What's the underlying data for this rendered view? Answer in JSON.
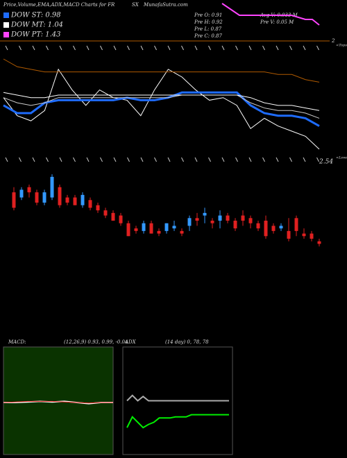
{
  "header": {
    "title": "Price,Volume,EMA,ADX,MACD Charts for FR",
    "ticker": "SX",
    "site": "MunafaSutra.com",
    "dow_st": "DOW ST: 0.98",
    "dow_mt": "DOW MT: 1.04",
    "dow_pt": "DOW PT: 1.43",
    "pre_o": "Pre  O: 0.91",
    "pre_h": "Pre  H: 0.92",
    "pre_l": "Pre  L: 0.87",
    "pre_c": "Pre  C: 0.87",
    "avg_v": "Avg  V: 0.033 M",
    "pre_v": "Pre  V: 0.05 M"
  },
  "chart_data": [
    {
      "type": "line",
      "annotations": [
        "2",
        "<Tops",
        "2.54",
        "<Lows"
      ],
      "ylim": [
        0.8,
        1.15
      ],
      "series": [
        {
          "name": "price",
          "color": "#ffffff",
          "values": [
            1.0,
            0.93,
            0.91,
            0.95,
            1.11,
            1.03,
            0.97,
            1.03,
            1.0,
            0.99,
            0.93,
            1.03,
            1.11,
            1.08,
            1.03,
            0.99,
            1.0,
            0.97,
            0.88,
            0.92,
            0.89,
            0.87,
            0.85,
            0.8
          ]
        },
        {
          "name": "ema-short",
          "color": "#1e6cff",
          "values": [
            0.97,
            0.94,
            0.94,
            0.98,
            0.99,
            0.99,
            0.99,
            0.99,
            0.99,
            1.0,
            0.99,
            0.99,
            1.0,
            1.02,
            1.02,
            1.02,
            1.02,
            1.02,
            0.97,
            0.94,
            0.93,
            0.93,
            0.92,
            0.89
          ]
        },
        {
          "name": "ema-mid",
          "color": "#cccccc",
          "values": [
            1.0,
            0.98,
            0.97,
            0.98,
            1.0,
            1.0,
            1.0,
            1.0,
            1.0,
            1.0,
            1.0,
            1.0,
            1.0,
            1.01,
            1.01,
            1.01,
            1.01,
            1.01,
            0.98,
            0.96,
            0.95,
            0.95,
            0.94,
            0.92
          ]
        },
        {
          "name": "ema-long",
          "color": "#ffffff",
          "values": [
            1.02,
            1.01,
            1.0,
            1.0,
            1.01,
            1.01,
            1.01,
            1.01,
            1.01,
            1.01,
            1.01,
            1.01,
            1.01,
            1.01,
            1.01,
            1.01,
            1.01,
            1.01,
            1.0,
            0.98,
            0.97,
            0.97,
            0.96,
            0.95
          ]
        },
        {
          "name": "ema-top",
          "color": "#b05a00",
          "values": [
            1.15,
            1.12,
            1.11,
            1.1,
            1.1,
            1.1,
            1.1,
            1.1,
            1.1,
            1.1,
            1.1,
            1.1,
            1.1,
            1.1,
            1.1,
            1.1,
            1.1,
            1.1,
            1.1,
            1.1,
            1.09,
            1.09,
            1.07,
            1.06
          ]
        }
      ]
    },
    {
      "type": "candlestick",
      "ylim": [
        0.8,
        1.15
      ],
      "open": [
        1.05,
        1.03,
        1.07,
        1.05,
        1.01,
        1.03,
        1.07,
        1.03,
        1.03,
        1.0,
        1.02,
        1.0,
        0.98,
        0.97,
        0.96,
        0.93,
        0.91,
        0.9,
        0.93,
        0.9,
        0.9,
        0.91,
        0.9,
        0.92,
        0.95,
        0.96,
        0.94,
        0.94,
        0.96,
        0.94,
        0.96,
        0.95,
        0.93,
        0.94,
        0.92,
        0.91,
        0.9,
        0.95,
        0.89,
        0.89,
        0.86
      ],
      "high": [
        1.07,
        1.07,
        1.08,
        1.06,
        1.06,
        1.12,
        1.08,
        1.04,
        1.04,
        1.05,
        1.03,
        1.01,
        0.99,
        0.98,
        0.97,
        0.94,
        0.92,
        0.94,
        0.94,
        0.91,
        0.93,
        0.94,
        0.91,
        0.96,
        0.97,
        0.99,
        0.95,
        0.98,
        0.97,
        0.95,
        0.98,
        0.96,
        0.94,
        0.96,
        0.93,
        0.93,
        0.95,
        0.96,
        0.91,
        0.9,
        0.87
      ],
      "low": [
        0.98,
        1.02,
        1.03,
        1.0,
        1.0,
        1.02,
        0.99,
        1.0,
        1.0,
        0.99,
        0.98,
        0.97,
        0.95,
        0.94,
        0.92,
        0.88,
        0.89,
        0.89,
        0.89,
        0.88,
        0.89,
        0.9,
        0.88,
        0.9,
        0.92,
        0.93,
        0.91,
        0.91,
        0.93,
        0.9,
        0.92,
        0.91,
        0.9,
        0.87,
        0.89,
        0.9,
        0.86,
        0.88,
        0.87,
        0.86,
        0.84
      ],
      "close": [
        0.99,
        1.06,
        1.05,
        1.01,
        1.05,
        1.11,
        1.0,
        1.01,
        1.0,
        1.04,
        0.99,
        0.98,
        0.96,
        0.94,
        0.93,
        0.88,
        0.9,
        0.93,
        0.89,
        0.89,
        0.93,
        0.92,
        0.89,
        0.95,
        0.94,
        0.97,
        0.93,
        0.96,
        0.94,
        0.91,
        0.94,
        0.93,
        0.91,
        0.88,
        0.9,
        0.92,
        0.87,
        0.9,
        0.88,
        0.87,
        0.85
      ],
      "up_color": "#3399ff",
      "down_color": "#e02020"
    },
    {
      "type": "line",
      "title": "MACD:",
      "subtitle": "(12,26,9) 0.93, 0.99, -0.04",
      "ylim": [
        -1,
        1
      ],
      "background": "#0a3300",
      "series": [
        {
          "name": "macd",
          "color": "#ffffff",
          "values": [
            0.0,
            0.0,
            0.01,
            0.02,
            0.01,
            0.02,
            0.0,
            -0.02,
            0.0,
            0.0
          ]
        },
        {
          "name": "signal",
          "color": "#e02020",
          "values": [
            0.0,
            0.01,
            0.02,
            0.02,
            0.02,
            0.01,
            0.0,
            -0.01,
            0.0,
            0.0
          ]
        }
      ]
    },
    {
      "type": "line",
      "title": "ADX",
      "subtitle": "(14 day) 0, 78, 78",
      "ylim": [
        0,
        100
      ],
      "background": "#000000",
      "series": [
        {
          "name": "adx",
          "color": "#aaaaaa",
          "values": [
            50,
            55,
            50,
            54,
            50,
            50,
            50,
            50,
            50,
            50,
            50,
            50,
            50,
            50,
            50,
            50,
            50,
            50,
            50,
            50
          ]
        },
        {
          "name": "di",
          "color": "#00ee00",
          "values": [
            25,
            35,
            30,
            25,
            28,
            30,
            34,
            34,
            34,
            35,
            35,
            35,
            37,
            37,
            37,
            37,
            37,
            37,
            37,
            37
          ]
        }
      ]
    }
  ]
}
